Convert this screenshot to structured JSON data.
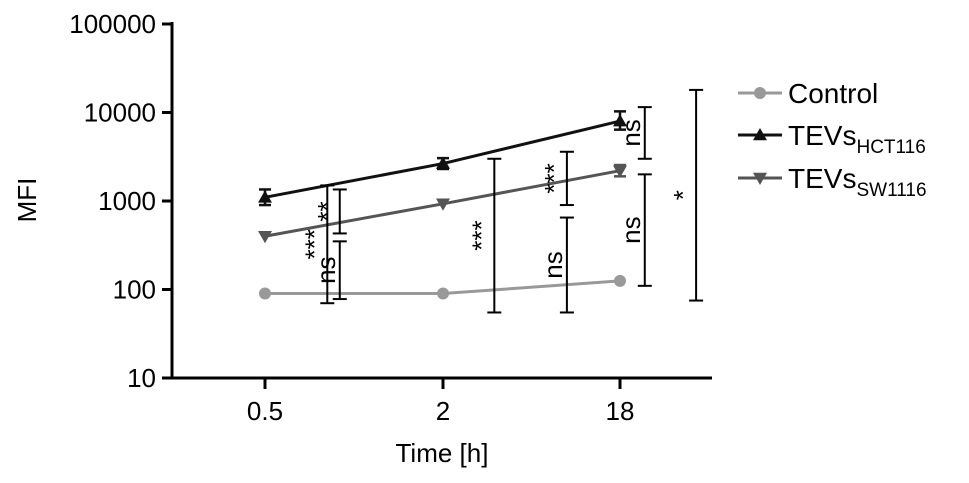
{
  "chart_data": {
    "type": "line",
    "xlabel": "Time [h]",
    "ylabel": "MFI",
    "yscale": "log",
    "ylim": [
      10,
      100000
    ],
    "yticks": [
      10,
      100,
      1000,
      10000,
      100000
    ],
    "ytick_labels": [
      "10",
      "100",
      "1000",
      "10000",
      "100000"
    ],
    "categories": [
      "0.5",
      "2",
      "18"
    ],
    "grid": false,
    "legend_position": "right",
    "series": [
      {
        "name": "Control",
        "name_main": "Control",
        "name_sub": "",
        "color": "#999999",
        "marker": "circle",
        "values": [
          90,
          90,
          125
        ],
        "errors_low": [
          null,
          null,
          null
        ],
        "errors_high": [
          null,
          null,
          null
        ]
      },
      {
        "name": "TEVsHCT116",
        "name_main": "TEVs",
        "name_sub": "HCT116",
        "color": "#111111",
        "marker": "triangle-up",
        "values": [
          1100,
          2650,
          8000
        ],
        "errors_low": [
          900,
          2300,
          6400
        ],
        "errors_high": [
          1350,
          3050,
          10300
        ]
      },
      {
        "name": "TEVsSW1116",
        "name_main": "TEVs",
        "name_sub": "SW1116",
        "color": "#555555",
        "marker": "triangle-down",
        "values": [
          400,
          930,
          2200
        ],
        "errors_low": [
          null,
          null,
          1900
        ],
        "errors_high": [
          null,
          null,
          2550
        ]
      }
    ],
    "significance": [
      {
        "label": "***",
        "x_position": 0.35,
        "y_low": 70,
        "y_high": 1500
      },
      {
        "label": "ns",
        "x_position": 0.42,
        "y_low": 78,
        "y_high": 350
      },
      {
        "label": "**",
        "x_position": 0.42,
        "y_low": 430,
        "y_high": 1350
      },
      {
        "label": "***",
        "x_position": 1.29,
        "y_low": 55,
        "y_high": 3000
      },
      {
        "label": "***",
        "x_position": 1.7,
        "y_low": 900,
        "y_high": 3600
      },
      {
        "label": "ns",
        "x_position": 1.7,
        "y_low": 55,
        "y_high": 650
      },
      {
        "label": "ns",
        "x_position": 2.14,
        "y_low": 3000,
        "y_high": 11500
      },
      {
        "label": "ns",
        "x_position": 2.14,
        "y_low": 110,
        "y_high": 2000
      },
      {
        "label": "*",
        "x_position": 2.43,
        "y_low": 75,
        "y_high": 18000
      }
    ]
  }
}
